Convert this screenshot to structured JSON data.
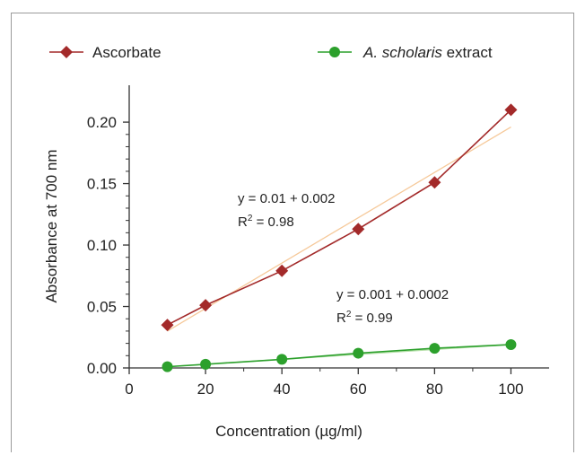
{
  "chart_data": {
    "type": "line",
    "title": "",
    "xlabel": "Concentration (µg/ml)",
    "ylabel": "Absorbance at 700 nm",
    "xlim": [
      0,
      110
    ],
    "ylim": [
      0,
      0.23
    ],
    "x_ticks": [
      0,
      20,
      40,
      60,
      80,
      100
    ],
    "y_ticks": [
      0.0,
      0.05,
      0.1,
      0.15,
      0.2
    ],
    "x_tick_labels": [
      "0",
      "20",
      "40",
      "60",
      "80",
      "100"
    ],
    "y_tick_labels": [
      "0.00",
      "0.05",
      "0.10",
      "0.15",
      "0.20"
    ],
    "grid": false,
    "legend_position": "top",
    "series": [
      {
        "name": "Ascorbate",
        "marker": "diamond",
        "color": "#a32a2a",
        "x": [
          10,
          20,
          40,
          60,
          80,
          100
        ],
        "y": [
          0.035,
          0.051,
          0.079,
          0.113,
          0.151,
          0.21
        ],
        "trendline": {
          "x": [
            10,
            100
          ],
          "y": [
            0.03,
            0.196
          ],
          "color": "#f6c99a"
        },
        "equation": "y = 0.01 + 0.002",
        "r2_prefix": "R",
        "r2_sup": "2",
        "r2_value": " = 0.98"
      },
      {
        "name_italic": "A. scholaris",
        "name_rest": " extract",
        "marker": "circle",
        "color": "#2ca02c",
        "x": [
          10,
          20,
          40,
          60,
          80,
          100
        ],
        "y": [
          0.001,
          0.003,
          0.007,
          0.012,
          0.016,
          0.019
        ],
        "trendline": {
          "x": [
            10,
            100
          ],
          "y": [
            0.001,
            0.019
          ],
          "color": "#b5e0a8"
        },
        "equation": "y = 0.001 + 0.0002",
        "r2_prefix": "R",
        "r2_sup": "2",
        "r2_value": " = 0.99"
      }
    ]
  }
}
